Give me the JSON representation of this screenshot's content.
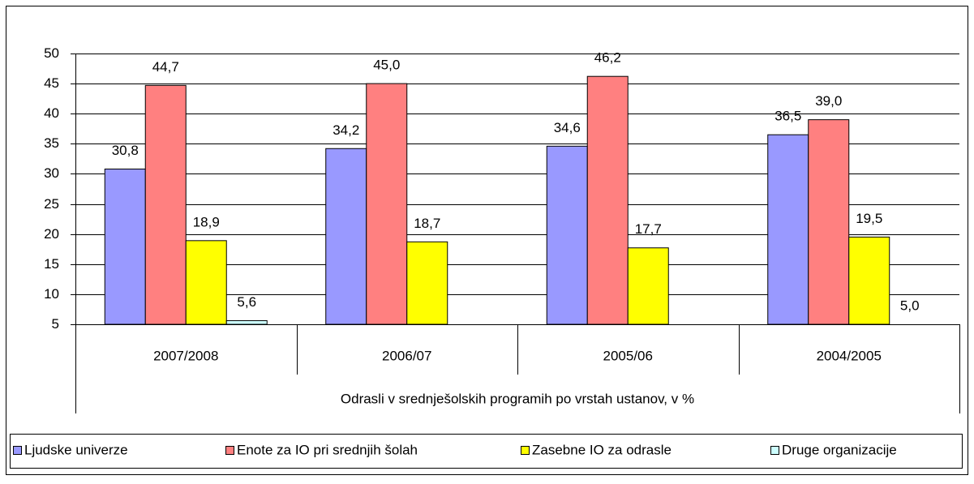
{
  "chart_data": {
    "type": "bar",
    "x_label": "Odrasli v srednješolskih programih po vrstah ustanov, v %",
    "categories": [
      "2007/2008",
      "2006/07",
      "2005/06",
      "2004/2005"
    ],
    "series": [
      {
        "name": "Ljudske univerze",
        "color": "#9999ff",
        "values": [
          30.8,
          34.2,
          34.6,
          36.5
        ],
        "value_labels": [
          "30,8",
          "34,2",
          "34,6",
          "36,5"
        ]
      },
      {
        "name": "Enote za IO pri srednjih šolah",
        "color": "#ff8080",
        "values": [
          44.7,
          45.0,
          46.2,
          39.0
        ],
        "value_labels": [
          "44,7",
          "45,0",
          "46,2",
          "39,0"
        ]
      },
      {
        "name": "Zasebne IO za odrasle",
        "color": "#ffff00",
        "values": [
          18.9,
          18.7,
          17.7,
          19.5
        ],
        "value_labels": [
          "18,9",
          "18,7",
          "17,7",
          "19,5"
        ]
      },
      {
        "name": "Druge organizacije",
        "color": "#ccffff",
        "values": [
          5.6,
          null,
          null,
          5.0
        ],
        "value_labels": [
          "5,6",
          null,
          null,
          "5,0"
        ]
      }
    ],
    "ylim": [
      5,
      50
    ],
    "yticks": [
      5,
      10,
      15,
      20,
      25,
      30,
      35,
      40,
      45,
      50
    ],
    "grid": true,
    "legend": "bottom"
  }
}
